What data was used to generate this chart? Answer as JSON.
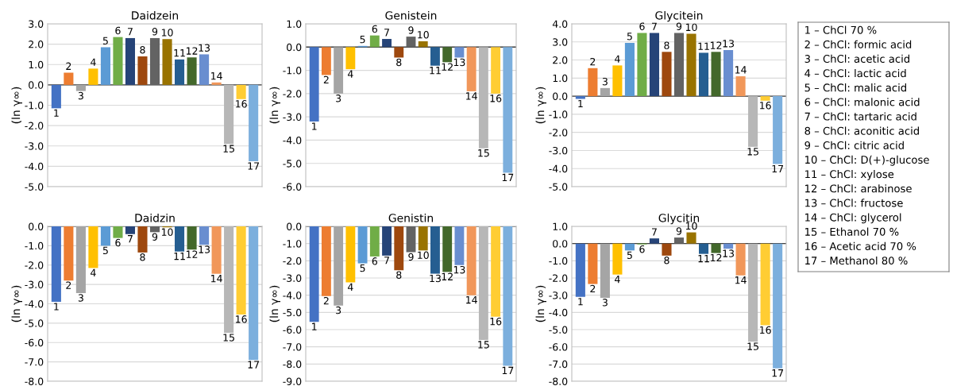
{
  "chart_data": [
    {
      "type": "bar",
      "title": "Daidzein",
      "ylabel": "(ln γ∞)",
      "categories": [
        "1",
        "2",
        "3",
        "4",
        "5",
        "6",
        "7",
        "8",
        "9",
        "10",
        "11",
        "12",
        "13",
        "14",
        "15",
        "16",
        "17"
      ],
      "values": [
        -1.15,
        0.6,
        -0.3,
        0.8,
        1.85,
        2.35,
        2.3,
        1.4,
        2.3,
        2.25,
        1.25,
        1.35,
        1.5,
        0.12,
        -2.9,
        -0.7,
        -3.75
      ],
      "colors": [
        "#4472c4",
        "#ed7d31",
        "#a5a5a5",
        "#ffc000",
        "#5b9bd5",
        "#70ad47",
        "#264478",
        "#9e480e",
        "#636363",
        "#997300",
        "#255e91",
        "#43682b",
        "#698ed0",
        "#f1975a",
        "#b7b7b7",
        "#ffcd33",
        "#7cafdd"
      ],
      "ylim": [
        -5,
        3
      ],
      "yticks": [
        {
          "value": -5,
          "label": "-5.0"
        },
        {
          "value": -4,
          "label": "-4.0"
        },
        {
          "value": -3,
          "label": "-3.0"
        },
        {
          "value": -2,
          "label": "-2.0"
        },
        {
          "value": -1,
          "label": "-1.0"
        },
        {
          "value": 0,
          "label": "0.0"
        },
        {
          "value": 1,
          "label": "1.0"
        },
        {
          "value": 2,
          "label": "2.0"
        },
        {
          "value": 3,
          "label": "3.0"
        }
      ],
      "grid": "y",
      "legend": false
    },
    {
      "type": "bar",
      "title": "Genistein",
      "ylabel": "(ln γ∞)",
      "categories": [
        "1",
        "2",
        "3",
        "4",
        "5",
        "6",
        "7",
        "8",
        "9",
        "10",
        "11",
        "12",
        "13",
        "14",
        "15",
        "16",
        "17"
      ],
      "values": [
        -3.2,
        -1.2,
        -2.0,
        -0.95,
        0.05,
        0.5,
        0.35,
        -0.45,
        0.45,
        0.25,
        -0.8,
        -0.65,
        -0.45,
        -1.9,
        -4.35,
        -2.0,
        -5.4
      ],
      "colors": [
        "#4472c4",
        "#ed7d31",
        "#a5a5a5",
        "#ffc000",
        "#5b9bd5",
        "#70ad47",
        "#264478",
        "#9e480e",
        "#636363",
        "#997300",
        "#255e91",
        "#43682b",
        "#698ed0",
        "#f1975a",
        "#b7b7b7",
        "#ffcd33",
        "#7cafdd"
      ],
      "ylim": [
        -6,
        1
      ],
      "yticks": [
        {
          "value": -6,
          "label": "-6.0"
        },
        {
          "value": -5,
          "label": "-5.0"
        },
        {
          "value": -4,
          "label": "-4.0"
        },
        {
          "value": -3,
          "label": "-3.0"
        },
        {
          "value": -2,
          "label": "-2.0"
        },
        {
          "value": -1,
          "label": "-1.0"
        },
        {
          "value": 0,
          "label": "0.0"
        },
        {
          "value": 1,
          "label": "1.0"
        }
      ],
      "grid": "y",
      "legend": false
    },
    {
      "type": "bar",
      "title": "Glycitein",
      "ylabel": "(ln γ∞)",
      "categories": [
        "1",
        "2",
        "3",
        "4",
        "5",
        "6",
        "7",
        "8",
        "9",
        "10",
        "11",
        "12",
        "13",
        "14",
        "15",
        "16",
        "17"
      ],
      "values": [
        -0.15,
        1.55,
        0.45,
        1.7,
        2.95,
        3.5,
        3.5,
        2.45,
        3.5,
        3.45,
        2.4,
        2.45,
        2.55,
        1.1,
        -2.8,
        -0.25,
        -3.75
      ],
      "colors": [
        "#4472c4",
        "#ed7d31",
        "#a5a5a5",
        "#ffc000",
        "#5b9bd5",
        "#70ad47",
        "#264478",
        "#9e480e",
        "#636363",
        "#997300",
        "#255e91",
        "#43682b",
        "#698ed0",
        "#f1975a",
        "#b7b7b7",
        "#ffcd33",
        "#7cafdd"
      ],
      "ylim": [
        -5,
        4
      ],
      "yticks": [
        {
          "value": -5,
          "label": "-5.0"
        },
        {
          "value": -4,
          "label": "-4.0"
        },
        {
          "value": -3,
          "label": "-3.0"
        },
        {
          "value": -2,
          "label": "-2.0"
        },
        {
          "value": -1,
          "label": "-1.0"
        },
        {
          "value": 0,
          "label": "0.0"
        },
        {
          "value": 1,
          "label": "1.0"
        },
        {
          "value": 2,
          "label": "2.0"
        },
        {
          "value": 3,
          "label": "3.0"
        },
        {
          "value": 4,
          "label": "4.0"
        }
      ],
      "grid": "y",
      "legend": false
    },
    {
      "type": "bar",
      "title": "Daidzin",
      "ylabel": "(ln γ∞)",
      "categories": [
        "1",
        "2",
        "3",
        "4",
        "5",
        "6",
        "7",
        "8",
        "9",
        "10",
        "11",
        "12",
        "13",
        "14",
        "15",
        "16",
        "17"
      ],
      "values": [
        -3.9,
        -2.8,
        -3.45,
        -2.15,
        -1.0,
        -0.6,
        -0.4,
        -1.35,
        -0.3,
        -0.05,
        -1.3,
        -1.2,
        -0.95,
        -2.45,
        -5.5,
        -4.55,
        -6.9
      ],
      "colors": [
        "#4472c4",
        "#ed7d31",
        "#a5a5a5",
        "#ffc000",
        "#5b9bd5",
        "#70ad47",
        "#264478",
        "#9e480e",
        "#636363",
        "#997300",
        "#255e91",
        "#43682b",
        "#698ed0",
        "#f1975a",
        "#b7b7b7",
        "#ffcd33",
        "#7cafdd"
      ],
      "ylim": [
        -8,
        0
      ],
      "yticks": [
        {
          "value": -8,
          "label": "-8.0"
        },
        {
          "value": -7,
          "label": "-7.0"
        },
        {
          "value": -6,
          "label": "-6.0"
        },
        {
          "value": -5,
          "label": "-5.0"
        },
        {
          "value": -4,
          "label": "-4.0"
        },
        {
          "value": -3,
          "label": "-3.0"
        },
        {
          "value": -2,
          "label": "-2.0"
        },
        {
          "value": -1,
          "label": "-1.0"
        },
        {
          "value": 0,
          "label": "0.0"
        }
      ],
      "grid": "y",
      "legend": false
    },
    {
      "type": "bar",
      "title": "Genistin",
      "ylabel": "(ln γ∞)",
      "categories": [
        "1",
        "2",
        "3",
        "4",
        "5",
        "6",
        "7",
        "8",
        "9",
        "10",
        "13",
        "12",
        "13",
        "14",
        "15",
        "16",
        "17"
      ],
      "values": [
        -5.55,
        -4.05,
        -4.6,
        -3.25,
        -2.15,
        -1.75,
        -1.7,
        -2.55,
        -1.5,
        -1.4,
        -2.75,
        -2.65,
        -2.25,
        -4.0,
        -6.6,
        -5.25,
        -8.1
      ],
      "colors": [
        "#4472c4",
        "#ed7d31",
        "#a5a5a5",
        "#ffc000",
        "#5b9bd5",
        "#70ad47",
        "#264478",
        "#9e480e",
        "#636363",
        "#997300",
        "#255e91",
        "#43682b",
        "#698ed0",
        "#f1975a",
        "#b7b7b7",
        "#ffcd33",
        "#7cafdd"
      ],
      "ylim": [
        -9,
        0
      ],
      "yticks": [
        {
          "value": -9,
          "label": "-9.0"
        },
        {
          "value": -8,
          "label": "-8.0"
        },
        {
          "value": -7,
          "label": "-7.0"
        },
        {
          "value": -6,
          "label": "-6.0"
        },
        {
          "value": -5,
          "label": "-5.0"
        },
        {
          "value": -4,
          "label": "-4.0"
        },
        {
          "value": -3,
          "label": "-3.0"
        },
        {
          "value": -2,
          "label": "-2.0"
        },
        {
          "value": -1,
          "label": "-1.0"
        },
        {
          "value": 0,
          "label": "0.0"
        }
      ],
      "grid": "y",
      "legend": false
    },
    {
      "type": "bar",
      "title": "Glycitin",
      "ylabel": "(ln γ∞)",
      "categories": [
        "1",
        "2",
        "3",
        "4",
        "5",
        "6",
        "7",
        "8",
        "9",
        "10",
        "11",
        "12",
        "13",
        "14",
        "15",
        "16",
        "17"
      ],
      "values": [
        -3.1,
        -2.35,
        -3.15,
        -1.8,
        -0.4,
        -0.05,
        0.3,
        -0.7,
        0.35,
        0.65,
        -0.6,
        -0.55,
        -0.3,
        -1.85,
        -5.7,
        -4.75,
        -7.25
      ],
      "colors": [
        "#4472c4",
        "#ed7d31",
        "#a5a5a5",
        "#ffc000",
        "#5b9bd5",
        "#70ad47",
        "#264478",
        "#9e480e",
        "#636363",
        "#997300",
        "#255e91",
        "#43682b",
        "#698ed0",
        "#f1975a",
        "#b7b7b7",
        "#ffcd33",
        "#7cafdd"
      ],
      "ylim": [
        -8,
        1
      ],
      "yticks": [
        {
          "value": -8,
          "label": "-8.0"
        },
        {
          "value": -7,
          "label": "-7.0"
        },
        {
          "value": -6,
          "label": "-6.0"
        },
        {
          "value": -5,
          "label": "-5.0"
        },
        {
          "value": -4,
          "label": "-4.0"
        },
        {
          "value": -3,
          "label": "-3.0"
        },
        {
          "value": -2,
          "label": "-2.0"
        },
        {
          "value": -1,
          "label": "-1.0"
        },
        {
          "value": 0,
          "label": "0.0"
        },
        {
          "value": 1,
          "label": "1.0"
        }
      ],
      "grid": "y",
      "legend": false
    },
    {
      "type": "other",
      "annotations": [
        "1 – ChCl 70 %",
        "2 – ChCl: formic acid",
        "3 – ChCl: acetic acid",
        "4 – ChCl: lactic acid",
        "5 – ChCl: malic acid",
        "6 – ChCl: malonic acid",
        "7 – ChCl: tartaric acid",
        "8 – ChCl: aconitic acid",
        "9 – ChCl: citric acid",
        "10 – ChCl: D(+)-glucose",
        "11 – ChCl: xylose",
        "12 – ChCl: arabinose",
        "13 – ChCl: fructose",
        "14 – ChCl: glycerol",
        "15 – Ethanol 70 %",
        "16 – Acetic acid 70 %",
        "17 – Methanol 80 %"
      ]
    }
  ]
}
